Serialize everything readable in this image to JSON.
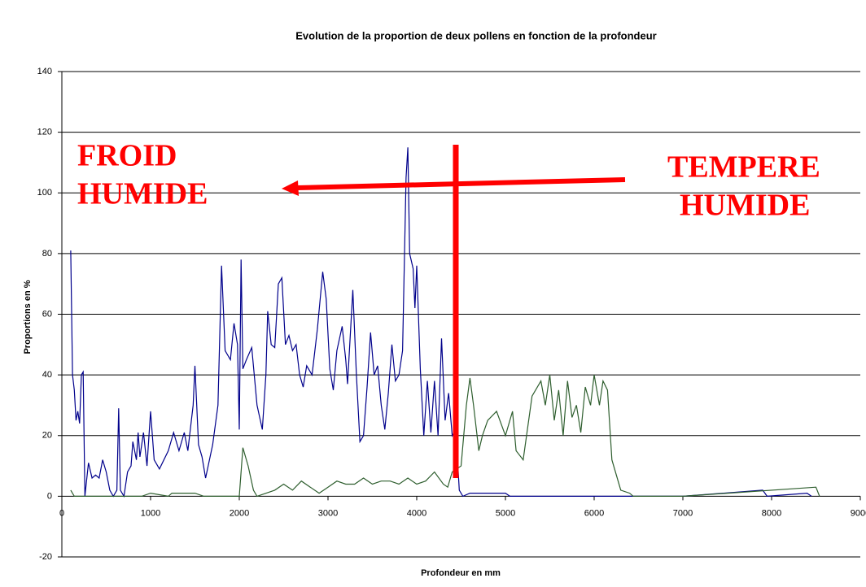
{
  "chart_data": {
    "type": "line",
    "title": "Evolution de la proportion de deux pollens en fonction de la profondeur",
    "x_label": "Profondeur en mm",
    "y_label": "Proportions en %",
    "annotations": [
      "FROID",
      "HUMIDE",
      "TEMPERE",
      "HUMIDE"
    ],
    "xlim": [
      0,
      9000
    ],
    "xticks": [
      0,
      1000,
      2000,
      3000,
      4000,
      5000,
      6000,
      7000,
      8000,
      9000
    ],
    "ylim": [
      -20,
      140
    ],
    "yticks": [
      -20,
      0,
      20,
      40,
      60,
      80,
      100,
      120,
      140
    ],
    "grid": true,
    "series": [
      {
        "color": "#00008b",
        "x": [
          100,
          120,
          140,
          160,
          180,
          200,
          220,
          240,
          260,
          300,
          340,
          380,
          420,
          460,
          500,
          540,
          580,
          620,
          640,
          660,
          700,
          740,
          780,
          800,
          840,
          860,
          880,
          920,
          960,
          1000,
          1040,
          1100,
          1200,
          1260,
          1320,
          1380,
          1420,
          1480,
          1500,
          1540,
          1580,
          1620,
          1700,
          1760,
          1800,
          1840,
          1900,
          1940,
          1980,
          2000,
          2020,
          2040,
          2080,
          2140,
          2200,
          2260,
          2300,
          2320,
          2360,
          2400,
          2440,
          2480,
          2520,
          2560,
          2600,
          2640,
          2680,
          2720,
          2760,
          2820,
          2880,
          2940,
          2980,
          3020,
          3060,
          3100,
          3160,
          3200,
          3220,
          3280,
          3320,
          3360,
          3400,
          3440,
          3480,
          3520,
          3560,
          3600,
          3640,
          3680,
          3720,
          3760,
          3800,
          3840,
          3880,
          3900,
          3920,
          3960,
          3980,
          4000,
          4040,
          4080,
          4120,
          4160,
          4200,
          4240,
          4280,
          4320,
          4360,
          4400,
          4440,
          4480,
          4520,
          4600,
          5000,
          5050,
          7000,
          7900,
          7950,
          8400,
          8450
        ],
        "values": [
          81,
          40,
          35,
          25,
          28,
          24,
          40,
          41,
          0,
          11,
          6,
          7,
          6,
          12,
          8,
          2,
          0,
          2,
          29,
          2,
          0,
          8,
          10,
          18,
          12,
          21,
          13,
          21,
          10,
          28,
          12,
          9,
          15,
          21,
          15,
          21,
          15,
          30,
          43,
          17,
          13,
          6,
          17,
          30,
          76,
          48,
          45,
          57,
          50,
          22,
          78,
          42,
          45,
          49,
          30,
          22,
          40,
          61,
          50,
          49,
          70,
          72,
          50,
          53,
          48,
          50,
          40,
          36,
          43,
          40,
          55,
          74,
          65,
          42,
          35,
          48,
          56,
          45,
          37,
          68,
          40,
          18,
          20,
          36,
          54,
          40,
          43,
          30,
          22,
          34,
          50,
          38,
          40,
          48,
          105,
          115,
          80,
          75,
          62,
          76,
          42,
          20,
          38,
          21,
          38,
          20,
          52,
          25,
          34,
          20,
          22,
          2,
          0,
          1,
          1,
          0,
          0,
          2,
          0,
          1,
          0
        ]
      },
      {
        "color": "#2e5e2e",
        "x": [
          100,
          140,
          900,
          1000,
          1200,
          1240,
          1500,
          1600,
          2000,
          2040,
          2100,
          2160,
          2200,
          2400,
          2500,
          2600,
          2700,
          2800,
          2900,
          3000,
          3100,
          3200,
          3300,
          3400,
          3500,
          3600,
          3700,
          3800,
          3900,
          4000,
          4100,
          4200,
          4300,
          4350,
          4400,
          4500,
          4560,
          4600,
          4640,
          4700,
          4740,
          4800,
          4900,
          5000,
          5080,
          5120,
          5200,
          5300,
          5400,
          5450,
          5500,
          5550,
          5600,
          5650,
          5700,
          5750,
          5800,
          5850,
          5900,
          5960,
          6000,
          6060,
          6100,
          6150,
          6200,
          6300,
          6400,
          6440,
          7000,
          8500,
          8540
        ],
        "values": [
          2,
          0,
          0,
          1,
          0,
          1,
          1,
          0,
          0,
          16,
          10,
          2,
          0,
          2,
          4,
          2,
          5,
          3,
          1,
          3,
          5,
          4,
          4,
          6,
          4,
          5,
          5,
          4,
          6,
          4,
          5,
          8,
          4,
          3,
          8,
          10,
          30,
          39,
          30,
          15,
          20,
          25,
          28,
          20,
          28,
          15,
          12,
          33,
          38,
          30,
          40,
          25,
          35,
          20,
          38,
          26,
          30,
          21,
          36,
          30,
          40,
          30,
          38,
          35,
          12,
          2,
          1,
          0,
          0,
          3,
          0
        ]
      }
    ]
  }
}
